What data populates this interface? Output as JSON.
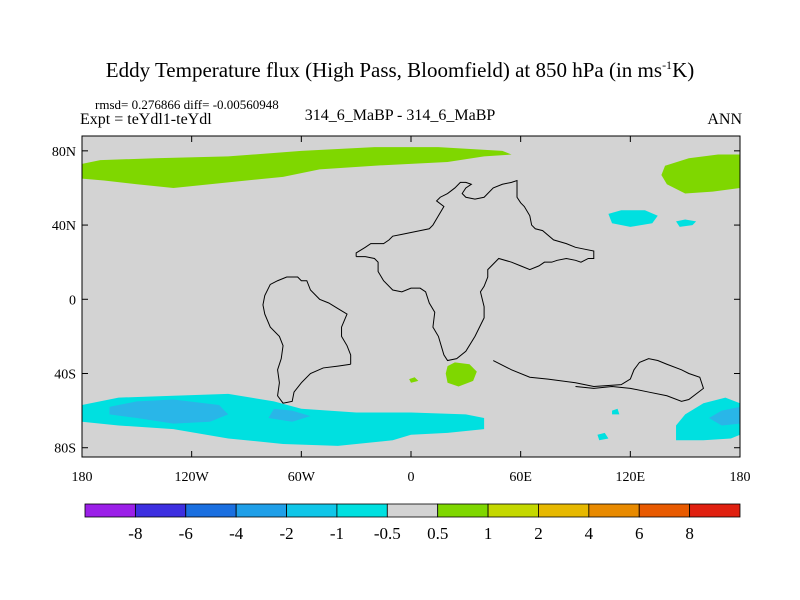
{
  "title": {
    "main": "Eddy Temperature flux (High Pass, Bloomfield) at 850 hPa (in ms",
    "sup": "-1",
    "unit_end": "K)"
  },
  "stats": "rmsd= 0.276866 diff= -0.00560948",
  "expt": "Expt = teYdl1-teYdl",
  "center_label": "314_6_MaBP - 314_6_MaBP",
  "season": "ANN",
  "colors": {
    "land_neutral": "#d3d3d3",
    "positive_small": "#7fd700",
    "negative_small": "#00e0e0",
    "negative_mid": "#29b6e8",
    "outline": "#000000"
  },
  "chart_data": {
    "type": "heatmap",
    "title": "Eddy Temperature flux (High Pass, Bloomfield) at 850 hPa (in ms-1K)",
    "x_ticks": [
      {
        "value": -180,
        "label": "180"
      },
      {
        "value": -120,
        "label": "120W"
      },
      {
        "value": -60,
        "label": "60W"
      },
      {
        "value": 0,
        "label": "0"
      },
      {
        "value": 60,
        "label": "60E"
      },
      {
        "value": 120,
        "label": "120E"
      },
      {
        "value": 180,
        "label": "180"
      }
    ],
    "y_ticks": [
      {
        "value": 80,
        "label": "80N"
      },
      {
        "value": 40,
        "label": "40N"
      },
      {
        "value": 0,
        "label": "0"
      },
      {
        "value": -40,
        "label": "40S"
      },
      {
        "value": -80,
        "label": "80S"
      }
    ],
    "xlim": [
      -180,
      180
    ],
    "ylim": [
      -85,
      88
    ],
    "colorbar": {
      "levels": [
        "-8",
        "-6",
        "-4",
        "-2",
        "-1",
        "-0.5",
        "0.5",
        "1",
        "2",
        "4",
        "6",
        "8"
      ],
      "colors": [
        "#9b1fe8",
        "#3d2fe0",
        "#1a6fe0",
        "#1f9fe8",
        "#10c6e8",
        "#00e0e0",
        "#d3d3d3",
        "#7fd700",
        "#c4d800",
        "#e6b800",
        "#e88a00",
        "#e85a00",
        "#e02010"
      ]
    },
    "regions": [
      {
        "name": "nh-pacific-atlantic-positive",
        "category": "1 to 2",
        "color": "#7fd700",
        "points": [
          [
            -180,
            73
          ],
          [
            -170,
            75
          ],
          [
            -140,
            76
          ],
          [
            -100,
            77
          ],
          [
            -60,
            80
          ],
          [
            -20,
            82
          ],
          [
            15,
            82
          ],
          [
            50,
            80
          ],
          [
            55,
            78
          ],
          [
            40,
            77
          ],
          [
            20,
            74
          ],
          [
            -20,
            72
          ],
          [
            -50,
            70
          ],
          [
            -70,
            66
          ],
          [
            -90,
            64
          ],
          [
            -110,
            62
          ],
          [
            -130,
            60
          ],
          [
            -150,
            62
          ],
          [
            -168,
            64
          ],
          [
            -180,
            65
          ]
        ]
      },
      {
        "name": "nh-east-pacific-positive",
        "category": "1 to 2",
        "color": "#7fd700",
        "points": [
          [
            180,
            60
          ],
          [
            180,
            78
          ],
          [
            168,
            78
          ],
          [
            152,
            76
          ],
          [
            139,
            72
          ],
          [
            137,
            67
          ],
          [
            140,
            62
          ],
          [
            150,
            57
          ],
          [
            165,
            58
          ]
        ]
      },
      {
        "name": "north-pacific-negative",
        "category": "-1 to -0.5",
        "color": "#00e0e0",
        "points": [
          [
            108,
            46
          ],
          [
            115,
            48
          ],
          [
            128,
            48
          ],
          [
            135,
            45
          ],
          [
            132,
            41
          ],
          [
            120,
            39
          ],
          [
            110,
            41
          ]
        ]
      },
      {
        "name": "north-pacific-small-negative",
        "category": "-1 to -0.5",
        "color": "#00e0e0",
        "points": [
          [
            145,
            42
          ],
          [
            150,
            43
          ],
          [
            156,
            42
          ],
          [
            154,
            40
          ],
          [
            147,
            39
          ]
        ]
      },
      {
        "name": "south-atlantic-small-positive",
        "category": "1 to 2",
        "color": "#7fd700",
        "points": [
          [
            20,
            -36
          ],
          [
            24,
            -34
          ],
          [
            32,
            -35
          ],
          [
            36,
            -39
          ],
          [
            34,
            -44
          ],
          [
            26,
            -47
          ],
          [
            20,
            -45
          ],
          [
            19,
            -40
          ]
        ]
      },
      {
        "name": "south-atlantic-tiny-positive",
        "category": "1 to 2",
        "color": "#7fd700",
        "points": [
          [
            -1,
            -43
          ],
          [
            2,
            -42
          ],
          [
            4,
            -44
          ],
          [
            0,
            -45
          ]
        ]
      },
      {
        "name": "southern-ocean-negative-band",
        "category": "-1 to -0.5",
        "color": "#00e0e0",
        "points": [
          [
            -180,
            -57
          ],
          [
            -160,
            -53
          ],
          [
            -130,
            -52
          ],
          [
            -100,
            -51
          ],
          [
            -75,
            -55
          ],
          [
            -60,
            -59
          ],
          [
            -30,
            -61
          ],
          [
            0,
            -61
          ],
          [
            30,
            -62
          ],
          [
            40,
            -64
          ],
          [
            40,
            -70
          ],
          [
            20,
            -72
          ],
          [
            0,
            -73
          ],
          [
            -10,
            -76
          ],
          [
            -40,
            -79
          ],
          [
            -70,
            -78
          ],
          [
            -100,
            -75
          ],
          [
            -130,
            -70
          ],
          [
            -160,
            -68
          ],
          [
            -180,
            -66
          ]
        ]
      },
      {
        "name": "southern-ocean-negative-core",
        "category": "-2 to -1",
        "color": "#29b6e8",
        "points": [
          [
            -165,
            -58
          ],
          [
            -150,
            -55
          ],
          [
            -130,
            -54
          ],
          [
            -105,
            -57
          ],
          [
            -100,
            -62
          ],
          [
            -110,
            -66
          ],
          [
            -130,
            -67
          ],
          [
            -150,
            -64
          ],
          [
            -165,
            -62
          ]
        ]
      },
      {
        "name": "southern-ocean-negative-core-2",
        "category": "-2 to -1",
        "color": "#29b6e8",
        "points": [
          [
            -75,
            -59
          ],
          [
            -65,
            -60
          ],
          [
            -55,
            -63
          ],
          [
            -65,
            -66
          ],
          [
            -78,
            -64
          ]
        ]
      },
      {
        "name": "southeast-negative-band",
        "category": "-1 to -0.5",
        "color": "#00e0e0",
        "points": [
          [
            180,
            -56
          ],
          [
            172,
            -53
          ],
          [
            160,
            -56
          ],
          [
            150,
            -62
          ],
          [
            145,
            -68
          ],
          [
            145,
            -76
          ],
          [
            160,
            -76
          ],
          [
            175,
            -75
          ],
          [
            180,
            -73
          ]
        ]
      },
      {
        "name": "southeast-negative-core",
        "category": "-2 to -1",
        "color": "#29b6e8",
        "points": [
          [
            180,
            -58
          ],
          [
            170,
            -60
          ],
          [
            163,
            -64
          ],
          [
            170,
            -68
          ],
          [
            180,
            -67
          ]
        ]
      },
      {
        "name": "southern-small-negative",
        "category": "-1 to -0.5",
        "color": "#00e0e0",
        "points": [
          [
            102,
            -73
          ],
          [
            106,
            -72
          ],
          [
            108,
            -75
          ],
          [
            103,
            -76
          ]
        ]
      },
      {
        "name": "southern-dots-negative",
        "category": "-1 to -0.5",
        "color": "#00e0e0",
        "points": [
          [
            110,
            -60
          ],
          [
            113,
            -59
          ],
          [
            114,
            -62
          ],
          [
            110,
            -62
          ]
        ]
      }
    ],
    "outlines": [
      {
        "name": "center-continent-outline",
        "points": [
          [
            -30,
            23
          ],
          [
            -30,
            25
          ],
          [
            -25,
            28
          ],
          [
            -22,
            30
          ],
          [
            -15,
            30
          ],
          [
            -12,
            32
          ],
          [
            -10,
            34
          ],
          [
            -5,
            35
          ],
          [
            0,
            36
          ],
          [
            5,
            37
          ],
          [
            10,
            38
          ],
          [
            12,
            40
          ],
          [
            15,
            45
          ],
          [
            18,
            50
          ],
          [
            14,
            53
          ],
          [
            16,
            55
          ],
          [
            20,
            57
          ],
          [
            24,
            60
          ],
          [
            27,
            63
          ],
          [
            30,
            63
          ],
          [
            33,
            62
          ],
          [
            30,
            60
          ],
          [
            28,
            57
          ],
          [
            30,
            55
          ],
          [
            35,
            54
          ],
          [
            40,
            55
          ],
          [
            42,
            57
          ],
          [
            45,
            60
          ],
          [
            50,
            62
          ],
          [
            55,
            63
          ],
          [
            58,
            64
          ],
          [
            58,
            55
          ],
          [
            60,
            52
          ],
          [
            62,
            50
          ],
          [
            65,
            45
          ],
          [
            66,
            40
          ],
          [
            68,
            38
          ],
          [
            72,
            37
          ],
          [
            78,
            32
          ],
          [
            85,
            30
          ],
          [
            90,
            28
          ],
          [
            95,
            27
          ],
          [
            100,
            26
          ],
          [
            100,
            22
          ],
          [
            97,
            22
          ],
          [
            93,
            20
          ],
          [
            90,
            21
          ],
          [
            85,
            22
          ],
          [
            80,
            21
          ],
          [
            77,
            20
          ],
          [
            73,
            20
          ],
          [
            70,
            18
          ],
          [
            65,
            16
          ],
          [
            60,
            18
          ],
          [
            55,
            20
          ],
          [
            48,
            22
          ],
          [
            42,
            16
          ],
          [
            42,
            12
          ],
          [
            40,
            7
          ],
          [
            38,
            4
          ],
          [
            39,
            0
          ],
          [
            40,
            -4
          ],
          [
            40,
            -10
          ],
          [
            38,
            -14
          ],
          [
            35,
            -20
          ],
          [
            30,
            -28
          ],
          [
            25,
            -32
          ],
          [
            20,
            -33
          ],
          [
            18,
            -30
          ],
          [
            15,
            -20
          ],
          [
            12,
            -15
          ],
          [
            13,
            -7
          ],
          [
            10,
            -2
          ],
          [
            8,
            4
          ],
          [
            5,
            6
          ],
          [
            0,
            6
          ],
          [
            -5,
            4
          ],
          [
            -10,
            5
          ],
          [
            -15,
            10
          ],
          [
            -18,
            15
          ],
          [
            -18,
            20
          ],
          [
            -20,
            22
          ],
          [
            -25,
            23
          ],
          [
            -30,
            23
          ]
        ]
      },
      {
        "name": "western-continent-outline",
        "points": [
          [
            -33,
            -35
          ],
          [
            -33,
            -30
          ],
          [
            -35,
            -25
          ],
          [
            -38,
            -20
          ],
          [
            -38,
            -15
          ],
          [
            -35,
            -8
          ],
          [
            -40,
            -5
          ],
          [
            -45,
            -2
          ],
          [
            -50,
            0
          ],
          [
            -55,
            5
          ],
          [
            -57,
            10
          ],
          [
            -60,
            10
          ],
          [
            -62,
            12
          ],
          [
            -68,
            12
          ],
          [
            -73,
            10
          ],
          [
            -77,
            8
          ],
          [
            -80,
            2
          ],
          [
            -81,
            -3
          ],
          [
            -80,
            -8
          ],
          [
            -77,
            -15
          ],
          [
            -72,
            -20
          ],
          [
            -70,
            -25
          ],
          [
            -71,
            -32
          ],
          [
            -73,
            -38
          ],
          [
            -72,
            -45
          ],
          [
            -73,
            -52
          ],
          [
            -70,
            -56
          ],
          [
            -65,
            -55
          ],
          [
            -64,
            -50
          ],
          [
            -60,
            -45
          ],
          [
            -55,
            -40
          ],
          [
            -48,
            -37
          ],
          [
            -40,
            -36
          ],
          [
            -33,
            -35
          ]
        ]
      },
      {
        "name": "eastern-landmass-outline",
        "points": [
          [
            45,
            -33
          ],
          [
            55,
            -38
          ],
          [
            65,
            -42
          ],
          [
            75,
            -43
          ],
          [
            90,
            -45
          ],
          [
            100,
            -47
          ],
          [
            115,
            -46
          ],
          [
            120,
            -43
          ],
          [
            122,
            -38
          ],
          [
            125,
            -34
          ],
          [
            130,
            -32
          ],
          [
            135,
            -33
          ],
          [
            140,
            -35
          ],
          [
            148,
            -38
          ],
          [
            152,
            -40
          ],
          [
            158,
            -42
          ],
          [
            160,
            -48
          ],
          [
            152,
            -54
          ],
          [
            148,
            -55
          ],
          [
            140,
            -52
          ],
          [
            130,
            -50
          ],
          [
            120,
            -48
          ],
          [
            110,
            -47
          ],
          [
            100,
            -48
          ],
          [
            90,
            -47
          ]
        ]
      }
    ]
  }
}
